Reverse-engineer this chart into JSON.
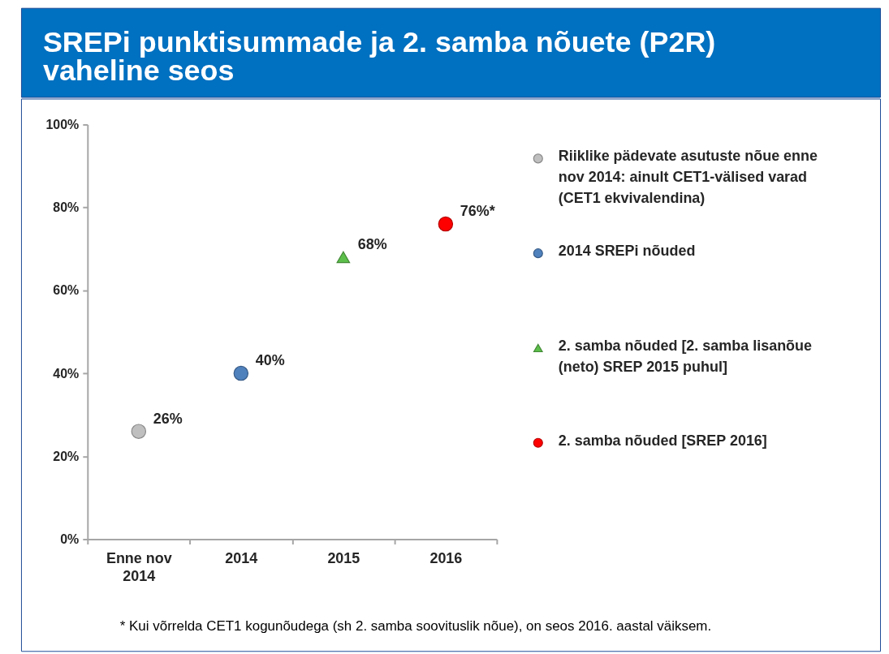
{
  "chart_data": {
    "type": "scatter",
    "title": "SREPi punktisummade ja 2. samba nõuete (P2R) vaheline seos",
    "categories": [
      "Enne nov 2014",
      "2014",
      "2015",
      "2016"
    ],
    "series": [
      {
        "name": "Riiklike pädevate asutuste nõue enne nov 2014: ainult CET1-välised varad (CET1 ekvivalendina)",
        "color": "#bfbfbf",
        "marker": "circle",
        "values": [
          26,
          null,
          null,
          null
        ],
        "value_labels": [
          "26%",
          null,
          null,
          null
        ]
      },
      {
        "name": "2014 SREPi nõuded",
        "color": "#4f81bd",
        "marker": "circle",
        "values": [
          null,
          40,
          null,
          null
        ],
        "value_labels": [
          null,
          "40%",
          null,
          null
        ]
      },
      {
        "name": "2. samba nõuded [2. samba lisanõue (neto) SREP 2015 puhul]",
        "color": "#5cbf4a",
        "marker": "triangle",
        "values": [
          null,
          null,
          68,
          null
        ],
        "value_labels": [
          null,
          null,
          "68%",
          null
        ]
      },
      {
        "name": "2. samba nõuded [SREP 2016]",
        "color": "#ff0000",
        "marker": "circle",
        "values": [
          null,
          null,
          null,
          76
        ],
        "value_labels": [
          null,
          null,
          null,
          "76%*"
        ]
      }
    ],
    "ylim": [
      0,
      100
    ],
    "yticks": [
      {
        "value": 0,
        "label": "0%"
      },
      {
        "value": 20,
        "label": "20%"
      },
      {
        "value": 40,
        "label": "40%"
      },
      {
        "value": 60,
        "label": "60%"
      },
      {
        "value": 80,
        "label": "80%"
      },
      {
        "value": 100,
        "label": "100%"
      }
    ],
    "legend": "right",
    "annotations": [
      "* Kui võrrelda CET1 kogunõudega (sh 2. samba soovituslik nõue), on seos 2016. aastal väiksem."
    ]
  }
}
